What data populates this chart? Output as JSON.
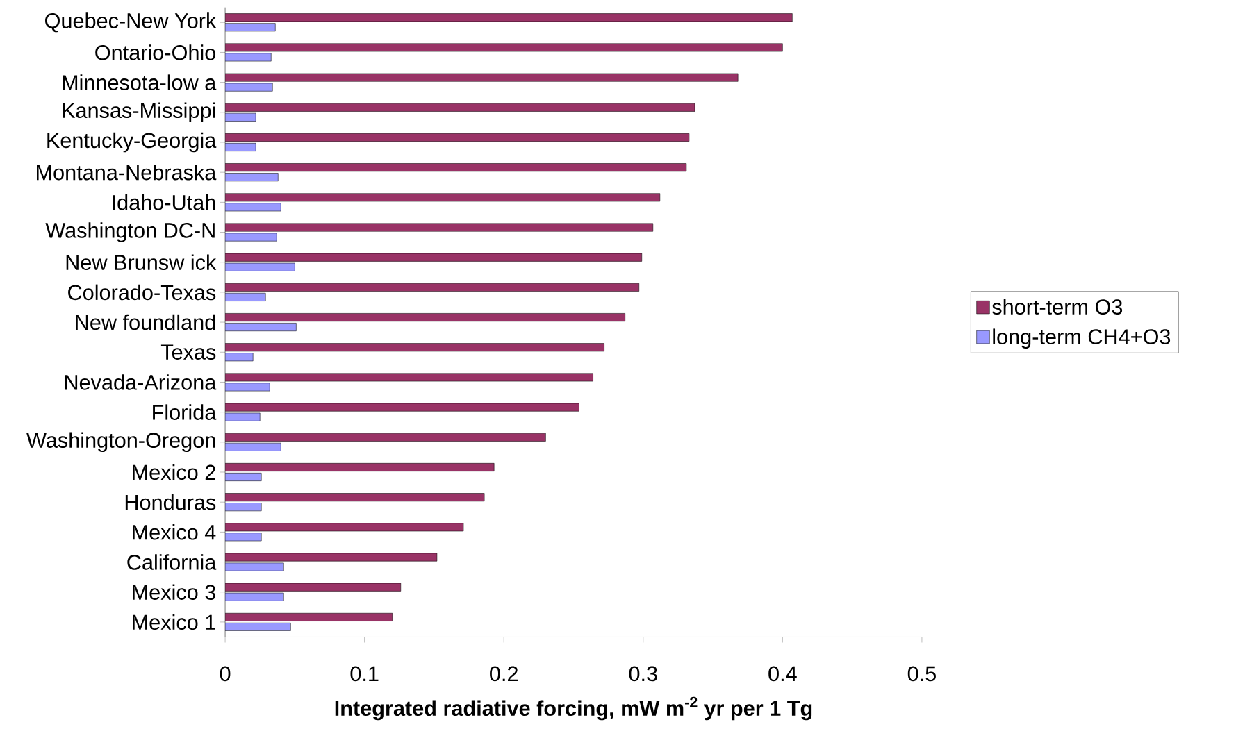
{
  "chart_data": {
    "type": "bar",
    "orientation": "horizontal",
    "xlabel": "Integrated radiative forcing, mW m$^{-2}$ yr per 1 Tg",
    "categories": [
      "Quebec-New York",
      "Ontario-Ohio",
      "Minnesota-low a",
      "Kansas-Missippi",
      "Kentucky-Georgia",
      "Montana-Nebraska",
      "Idaho-Utah",
      "Washington DC-N",
      "New Brunsw ick",
      "Colorado-Texas",
      "New foundland",
      "Texas",
      "Nevada-Arizona",
      "Florida",
      "Washington-Oregon",
      "Mexico 2",
      "Honduras",
      "Mexico 4",
      "California",
      "Mexico 3",
      "Mexico 1"
    ],
    "series": [
      {
        "name": "short-term O3",
        "color": "#993366",
        "values": [
          0.407,
          0.4,
          0.368,
          0.337,
          0.333,
          0.331,
          0.312,
          0.307,
          0.299,
          0.297,
          0.287,
          0.272,
          0.264,
          0.254,
          0.23,
          0.193,
          0.186,
          0.171,
          0.152,
          0.126,
          0.12
        ]
      },
      {
        "name": "long-term CH4+O3",
        "color": "#9999ff",
        "values": [
          0.036,
          0.033,
          0.034,
          0.022,
          0.022,
          0.038,
          0.04,
          0.037,
          0.05,
          0.029,
          0.051,
          0.02,
          0.032,
          0.025,
          0.04,
          0.026,
          0.026,
          0.026,
          0.042,
          0.042,
          0.047
        ]
      }
    ],
    "xlim": [
      0,
      0.5
    ],
    "xticks": [
      0,
      0.1,
      0.2,
      0.3,
      0.4,
      0.5
    ],
    "legend": "right",
    "grid": false
  }
}
